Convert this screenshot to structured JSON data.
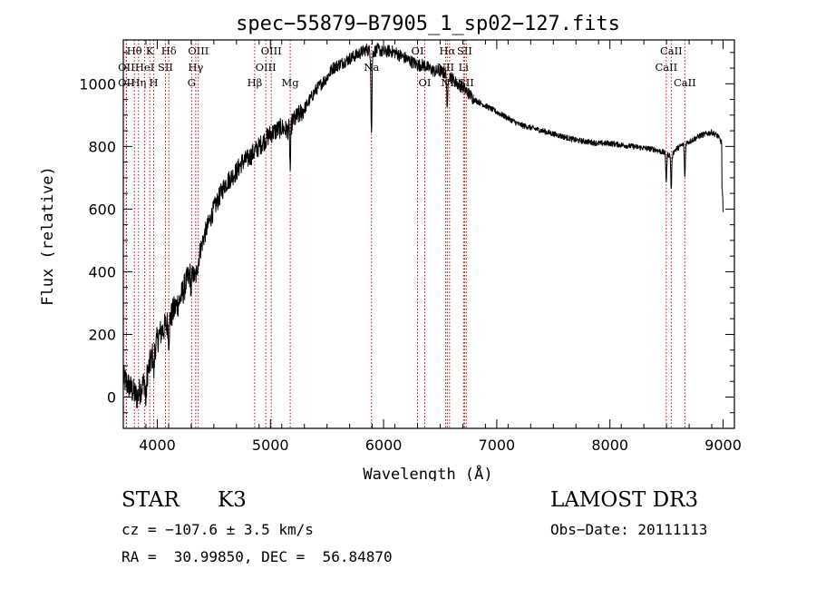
{
  "chart_data": {
    "type": "line",
    "title": "spec−55879−B7905_1_sp02−127.fits",
    "xlabel": "Wavelength (Å)",
    "ylabel": "Flux (relative)",
    "xlim": [
      3700,
      9100
    ],
    "ylim": [
      -100,
      1140
    ],
    "x_ticks": [
      4000,
      5000,
      6000,
      7000,
      8000,
      9000
    ],
    "y_ticks": [
      0,
      200,
      400,
      600,
      800,
      1000
    ],
    "x_tick_labels": [
      "4000",
      "5000",
      "6000",
      "7000",
      "8000",
      "9000"
    ],
    "y_tick_labels": [
      "0",
      "200",
      "400",
      "600",
      "800",
      "1000"
    ],
    "series": [
      {
        "name": "spectrum",
        "x": [
          3700,
          3740,
          3780,
          3820,
          3860,
          3900,
          3940,
          3980,
          4020,
          4060,
          4100,
          4150,
          4200,
          4250,
          4300,
          4340,
          4380,
          4420,
          4460,
          4500,
          4550,
          4600,
          4650,
          4700,
          4750,
          4800,
          4850,
          4900,
          4950,
          5000,
          5050,
          5100,
          5150,
          5200,
          5250,
          5300,
          5350,
          5400,
          5450,
          5500,
          5550,
          5600,
          5650,
          5700,
          5750,
          5800,
          5850,
          5900,
          5950,
          6000,
          6050,
          6100,
          6150,
          6200,
          6250,
          6300,
          6350,
          6400,
          6450,
          6500,
          6560,
          6600,
          6650,
          6700,
          6750,
          6800,
          6850,
          6900,
          6950,
          7000,
          7100,
          7200,
          7300,
          7400,
          7500,
          7600,
          7700,
          7800,
          7900,
          8000,
          8100,
          8200,
          8300,
          8400,
          8480,
          8540,
          8580,
          8620,
          8660,
          8700,
          8750,
          8800,
          8850,
          8900,
          8950,
          8990,
          9000
        ],
        "y": [
          60,
          40,
          20,
          0,
          30,
          60,
          110,
          160,
          200,
          220,
          240,
          280,
          310,
          360,
          400,
          380,
          470,
          520,
          560,
          600,
          640,
          680,
          700,
          720,
          750,
          760,
          780,
          800,
          820,
          840,
          850,
          860,
          850,
          880,
          900,
          920,
          950,
          980,
          1000,
          1020,
          1050,
          1060,
          1070,
          1080,
          1090,
          1100,
          1110,
          1100,
          1110,
          1100,
          1105,
          1100,
          1090,
          1080,
          1070,
          1060,
          1060,
          1050,
          1040,
          1040,
          1030,
          1020,
          1000,
          990,
          970,
          950,
          940,
          930,
          920,
          910,
          890,
          870,
          860,
          850,
          840,
          830,
          820,
          815,
          810,
          810,
          805,
          800,
          795,
          790,
          780,
          770,
          790,
          800,
          810,
          815,
          825,
          835,
          840,
          845,
          835,
          810,
          760
        ]
      }
    ],
    "absorption_features": [
      {
        "wavelength": 3900,
        "depth": 80
      },
      {
        "wavelength": 3970,
        "depth": 70
      },
      {
        "wavelength": 4102,
        "depth": 60
      },
      {
        "wavelength": 4300,
        "depth": 60
      },
      {
        "wavelength": 5175,
        "depth": 140
      },
      {
        "wavelength": 5893,
        "depth": 260
      },
      {
        "wavelength": 6563,
        "depth": 120
      },
      {
        "wavelength": 8498,
        "depth": 90
      },
      {
        "wavelength": 8542,
        "depth": 110
      },
      {
        "wavelength": 8662,
        "depth": 110
      }
    ],
    "lines": [
      {
        "x": 3798,
        "label": "Hθ",
        "row": 0
      },
      {
        "x": 3727,
        "label": "OII",
        "row": 1
      },
      {
        "x": 3727,
        "label": "OII",
        "row": 2
      },
      {
        "x": 3835,
        "label": "Hη",
        "row": 2
      },
      {
        "x": 3889,
        "label": "HeI",
        "row": 1
      },
      {
        "x": 3934,
        "label": "K",
        "row": 0
      },
      {
        "x": 3969,
        "label": "H",
        "row": 2
      },
      {
        "x": 4072,
        "label": "SII",
        "row": 1
      },
      {
        "x": 4102,
        "label": "Hδ",
        "row": 0
      },
      {
        "x": 4304,
        "label": "G",
        "row": 2
      },
      {
        "x": 4340,
        "label": "Hγ",
        "row": 1
      },
      {
        "x": 4363,
        "label": "OIII",
        "row": 0
      },
      {
        "x": 4861,
        "label": "Hβ",
        "row": 2
      },
      {
        "x": 4959,
        "label": "OIII",
        "row": 1
      },
      {
        "x": 5007,
        "label": "OIII",
        "row": 0
      },
      {
        "x": 5175,
        "label": "Mg",
        "row": 2
      },
      {
        "x": 5893,
        "label": "Na",
        "row": 1
      },
      {
        "x": 6300,
        "label": "OI",
        "row": 0
      },
      {
        "x": 6364,
        "label": "OI",
        "row": 2
      },
      {
        "x": 6548,
        "label": "NII",
        "row": 1
      },
      {
        "x": 6563,
        "label": "Hα",
        "row": 0
      },
      {
        "x": 6583,
        "label": "NII",
        "row": 2
      },
      {
        "x": 6707,
        "label": "Li",
        "row": 1
      },
      {
        "x": 6716,
        "label": "SII",
        "row": 0
      },
      {
        "x": 6731,
        "label": "SII",
        "row": 2
      },
      {
        "x": 8498,
        "label": "CaII",
        "row": 1
      },
      {
        "x": 8542,
        "label": "CaII",
        "row": 0
      },
      {
        "x": 8662,
        "label": "CaII",
        "row": 2
      }
    ]
  },
  "info": {
    "object_class": "STAR",
    "subclass": "K3",
    "cz": "cz = −107.6 ± 3.5 km/s",
    "ra_dec": "RA =  30.99850, DEC =  56.84870",
    "survey": "LAMOST DR3",
    "obs_date": "Obs−Date: 20111113"
  }
}
